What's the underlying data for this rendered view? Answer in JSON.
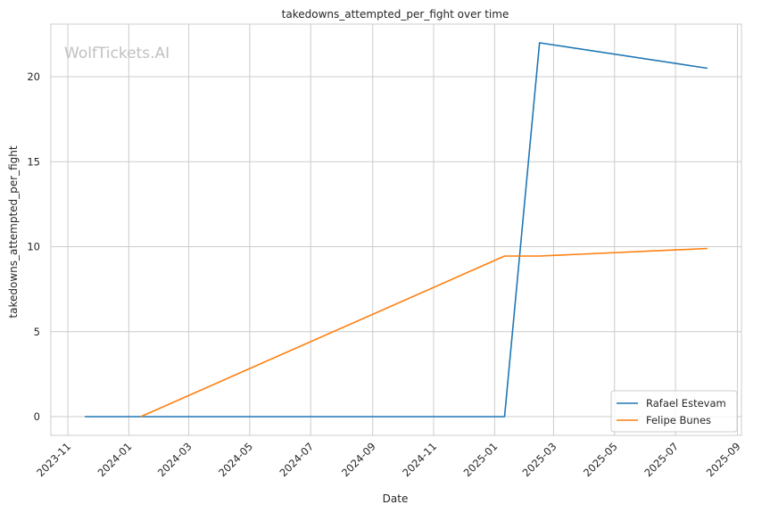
{
  "chart_data": {
    "type": "line",
    "title": "takedowns_attempted_per_fight over time",
    "xlabel": "Date",
    "ylabel": "takedowns_attempted_per_fight",
    "watermark": "WolfTickets.AI",
    "x_ticks": [
      "2023-11",
      "2024-01",
      "2024-03",
      "2024-05",
      "2024-07",
      "2024-09",
      "2024-11",
      "2025-01",
      "2025-03",
      "2025-05",
      "2025-07",
      "2025-09"
    ],
    "y_ticks": [
      0,
      5,
      10,
      15,
      20
    ],
    "xlim": [
      "2023-10-15",
      "2025-09-05"
    ],
    "ylim": [
      -1.1,
      23.1
    ],
    "grid": true,
    "legend_position": "bottom-right",
    "series": [
      {
        "name": "Rafael Estevam",
        "color": "#1f77b4",
        "points": [
          {
            "x": "2023-11-18",
            "y": 0
          },
          {
            "x": "2025-01-11",
            "y": 0
          },
          {
            "x": "2025-02-15",
            "y": 22
          },
          {
            "x": "2025-08-02",
            "y": 20.5
          }
        ]
      },
      {
        "name": "Felipe Bunes",
        "color": "#ff7f0e",
        "points": [
          {
            "x": "2024-01-13",
            "y": 0
          },
          {
            "x": "2025-01-11",
            "y": 9.45
          },
          {
            "x": "2025-02-15",
            "y": 9.45
          },
          {
            "x": "2025-08-02",
            "y": 9.9
          }
        ]
      }
    ]
  }
}
